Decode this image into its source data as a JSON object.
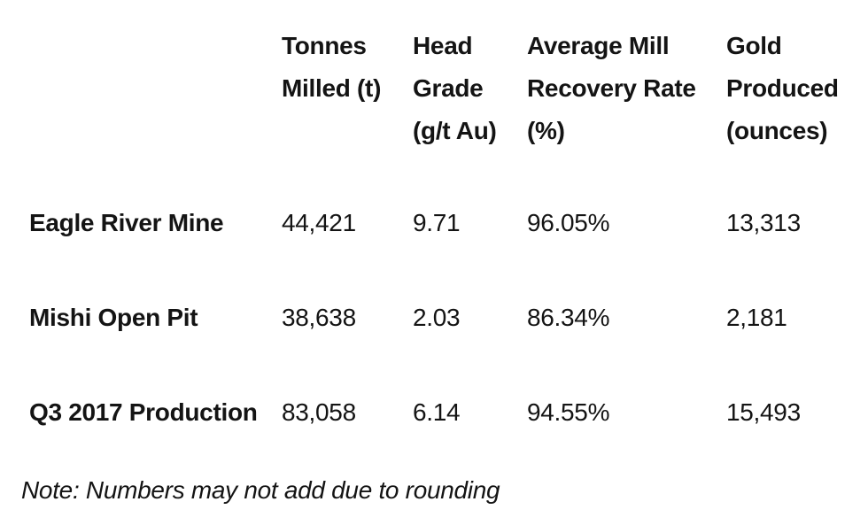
{
  "colors": {
    "background": "#ffffff",
    "text": "#141414"
  },
  "table": {
    "columns": [
      {
        "label": "Tonnes\nMilled (t)"
      },
      {
        "label": "Head\nGrade\n(g/t Au)"
      },
      {
        "label": "Average Mill\nRecovery Rate\n(%)"
      },
      {
        "label": "Gold\nProduced\n(ounces)"
      }
    ],
    "rows": [
      {
        "label": "Eagle River Mine",
        "values": [
          "44,421",
          "9.71",
          "96.05%",
          "13,313"
        ]
      },
      {
        "label": "Mishi Open Pit",
        "values": [
          "38,638",
          "2.03",
          "86.34%",
          "2,181"
        ]
      },
      {
        "label": "Q3 2017 Production",
        "values": [
          "83,058",
          "6.14",
          "94.55%",
          "15,493"
        ]
      }
    ],
    "note": "Note: Numbers may not add due to rounding"
  }
}
